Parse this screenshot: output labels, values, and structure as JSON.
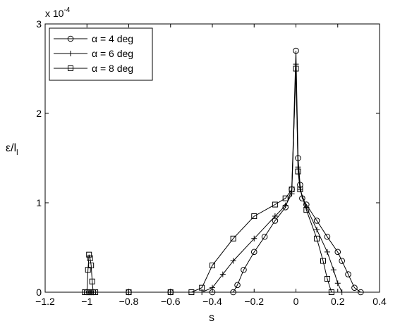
{
  "chart_data": {
    "type": "line",
    "title": "",
    "xlabel": "s",
    "ylabel": "ε/l",
    "ylabel_sub": "l",
    "y_multiplier": "x 10",
    "y_multiplier_exp": "-4",
    "xlim": [
      -1.2,
      0.4
    ],
    "ylim": [
      0,
      3
    ],
    "xticks": [
      -1.2,
      -1,
      -0.8,
      -0.6,
      -0.4,
      -0.2,
      0,
      0.2,
      0.4
    ],
    "xtick_labels": [
      "−1.2",
      "−1",
      "−0.8",
      "−0.6",
      "−0.4",
      "−0.2",
      "0",
      "0.2",
      "0.4"
    ],
    "yticks": [
      0,
      1,
      2,
      3
    ],
    "ytick_labels": [
      "0",
      "1",
      "2",
      "3"
    ],
    "grid": false,
    "legend_position": "top-left",
    "series": [
      {
        "name": "α = 4 deg",
        "marker": "circle",
        "x": [
          -1.0,
          -0.99,
          -0.98,
          -0.97,
          -0.8,
          -0.6,
          -0.4,
          -0.3,
          -0.28,
          -0.25,
          -0.2,
          -0.15,
          -0.1,
          -0.05,
          -0.02,
          0.0,
          0.01,
          0.02,
          0.03,
          0.05,
          0.1,
          0.15,
          0.2,
          0.22,
          0.25,
          0.28,
          0.31
        ],
        "y": [
          0.0,
          0.0,
          0.0,
          0.0,
          0.0,
          0.0,
          0.0,
          0.0,
          0.08,
          0.25,
          0.45,
          0.62,
          0.8,
          0.95,
          1.15,
          2.7,
          1.5,
          1.2,
          1.05,
          0.98,
          0.8,
          0.62,
          0.45,
          0.35,
          0.2,
          0.05,
          0.0
        ]
      },
      {
        "name": "α = 6 deg",
        "marker": "plus",
        "x": [
          -1.0,
          -0.99,
          -0.98,
          -0.97,
          -0.8,
          -0.6,
          -0.45,
          -0.4,
          -0.35,
          -0.3,
          -0.2,
          -0.1,
          -0.05,
          -0.02,
          0.0,
          0.01,
          0.02,
          0.05,
          0.1,
          0.15,
          0.18,
          0.2,
          0.22
        ],
        "y": [
          0.0,
          0.0,
          0.0,
          0.0,
          0.0,
          0.0,
          0.0,
          0.05,
          0.2,
          0.35,
          0.6,
          0.85,
          0.97,
          1.1,
          2.55,
          1.4,
          1.15,
          0.95,
          0.7,
          0.45,
          0.25,
          0.1,
          0.0
        ]
      },
      {
        "name": "α = 8 deg",
        "marker": "square",
        "x": [
          -1.01,
          -1.0,
          -0.995,
          -0.99,
          -0.985,
          -0.98,
          -0.975,
          -0.97,
          -0.96,
          -0.8,
          -0.6,
          -0.5,
          -0.45,
          -0.4,
          -0.3,
          -0.2,
          -0.1,
          -0.05,
          -0.02,
          0.0,
          0.01,
          0.02,
          0.05,
          0.1,
          0.13,
          0.15,
          0.17
        ],
        "y": [
          0.0,
          0.0,
          0.25,
          0.42,
          0.38,
          0.3,
          0.12,
          0.0,
          0.0,
          0.0,
          0.0,
          0.0,
          0.05,
          0.3,
          0.6,
          0.85,
          0.98,
          1.05,
          1.15,
          2.5,
          1.35,
          1.15,
          0.92,
          0.6,
          0.35,
          0.15,
          0.0
        ]
      }
    ]
  }
}
